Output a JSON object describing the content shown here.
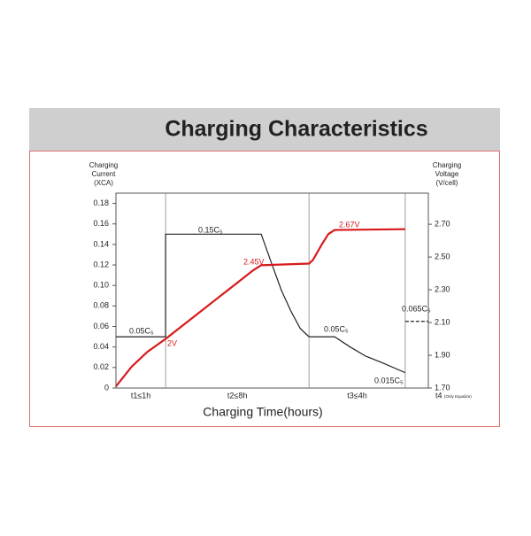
{
  "chart_data": {
    "type": "line",
    "title": "Charging Characteristics",
    "xlabel": "Charging Time(hours)",
    "ylabel": [
      "Charging",
      "Current",
      "(XCA)"
    ],
    "y2label": [
      "Charging",
      "Voltage",
      "(V/cell)"
    ],
    "xlim": [
      0,
      100
    ],
    "ylim": [
      0,
      0.19
    ],
    "yticks": [
      0,
      0.02,
      0.04,
      0.06,
      0.08,
      {
        "value": 0.1,
        "label": "0.10"
      },
      0.12,
      0.14,
      0.16,
      0.18
    ],
    "y2lim": [
      1.7,
      2.89
    ],
    "y2ticks": [
      {
        "value": 1.7,
        "label": "1.70"
      },
      {
        "value": 1.9,
        "label": "1.90"
      },
      {
        "value": 2.1,
        "label": "2.10"
      },
      {
        "value": 2.3,
        "label": "2.30"
      },
      {
        "value": 2.5,
        "label": "2.50"
      },
      {
        "value": 2.7,
        "label": "2.70"
      }
    ],
    "phases": [
      {
        "label": "t1≤1h",
        "start": 0,
        "end": 15.9
      },
      {
        "label": "t2≤8h",
        "start": 15.9,
        "end": 61.8
      },
      {
        "label": "t3≤4h",
        "start": 61.8,
        "end": 92.6
      },
      {
        "label": "t4",
        "note": "(Only Equalize)",
        "start": 92.6,
        "end": 100
      }
    ],
    "series": [
      {
        "color": "#222222",
        "dash": false,
        "x": [
          0,
          15.9,
          15.9,
          46.5,
          50,
          53,
          56,
          59,
          61.8,
          70,
          75,
          80,
          85,
          92.6
        ],
        "values": [
          0.05,
          0.05,
          0.15,
          0.15,
          0.12,
          0.095,
          0.075,
          0.058,
          0.05,
          0.05,
          0.04,
          0.031,
          0.025,
          0.015
        ],
        "annotations": [
          "0.05C₅",
          "0.15C₅",
          "0.05C₅",
          "0.015C₅"
        ]
      },
      {
        "color": "#d7191c",
        "dash": false,
        "axis": "y2",
        "x": [
          0,
          5,
          10,
          15.9,
          44,
          46.5,
          61.8,
          63,
          66,
          68,
          70,
          92.6
        ],
        "values": [
          1.71,
          1.83,
          1.92,
          2.0,
          2.42,
          2.45,
          2.46,
          2.48,
          2.58,
          2.64,
          2.665,
          2.67
        ],
        "annotations": [
          "2V",
          "2.45V",
          "2.67V"
        ]
      },
      {
        "color": "#222222",
        "dash": true,
        "x": [
          92.6,
          100
        ],
        "values": [
          0.065,
          0.065
        ],
        "annotations": [
          "0.065C₅"
        ]
      }
    ]
  }
}
